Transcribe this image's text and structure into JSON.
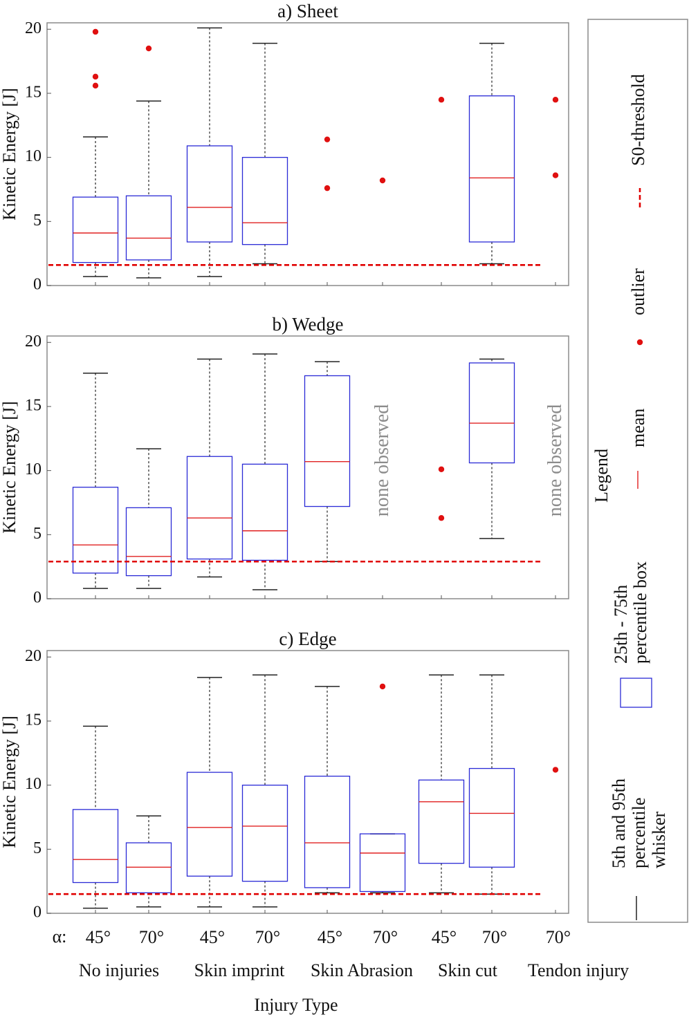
{
  "chart_data": {
    "type": "box",
    "xlabel": "Injury Type",
    "alpha_label": "α:",
    "angle_labels": [
      "45°",
      "70°",
      "45°",
      "70°",
      "45°",
      "70°",
      "45°",
      "70°",
      "70°"
    ],
    "categories": [
      "No injuries",
      "Skin imprint",
      "Skin Abrasion",
      "Skin cut",
      "Tendon injury"
    ],
    "ylim": [
      0,
      20
    ],
    "yticks": [
      "0",
      "5",
      "10",
      "15",
      "20"
    ],
    "panels": [
      {
        "title": "a) Sheet",
        "ylabel": "Kinetic Energy [J]",
        "threshold": 1.6,
        "none_observed": [],
        "boxes": [
          {
            "slot": 0,
            "low": 0.7,
            "q1": 1.8,
            "mean": 4.1,
            "q3": 6.9,
            "high": 11.6
          },
          {
            "slot": 1,
            "low": 0.6,
            "q1": 2.0,
            "mean": 3.7,
            "q3": 7.0,
            "high": 14.4
          },
          {
            "slot": 2,
            "low": 0.7,
            "q1": 3.4,
            "mean": 6.1,
            "q3": 10.9,
            "high": 20.1
          },
          {
            "slot": 3,
            "low": 1.7,
            "q1": 3.2,
            "mean": 4.9,
            "q3": 10.0,
            "high": 18.9
          },
          {
            "slot": 7,
            "low": 1.7,
            "q1": 3.4,
            "mean": 8.4,
            "q3": 14.8,
            "high": 18.9
          }
        ],
        "outliers": [
          {
            "slot": 0,
            "value": 19.8
          },
          {
            "slot": 0,
            "value": 16.3
          },
          {
            "slot": 0,
            "value": 15.6
          },
          {
            "slot": 1,
            "value": 18.5
          },
          {
            "slot": 4,
            "value": 11.4
          },
          {
            "slot": 4,
            "value": 7.6
          },
          {
            "slot": 5,
            "value": 8.2
          },
          {
            "slot": 6,
            "value": 14.5
          },
          {
            "slot": 8,
            "value": 14.5
          },
          {
            "slot": 8,
            "value": 8.6
          }
        ]
      },
      {
        "title": "b) Wedge",
        "ylabel": "Kinetic Energy [J]",
        "threshold": 2.9,
        "none_observed": [
          5,
          8
        ],
        "boxes": [
          {
            "slot": 0,
            "low": 0.8,
            "q1": 2.0,
            "mean": 4.2,
            "q3": 8.7,
            "high": 17.6
          },
          {
            "slot": 1,
            "low": 0.8,
            "q1": 1.8,
            "mean": 3.3,
            "q3": 7.1,
            "high": 11.7
          },
          {
            "slot": 2,
            "low": 1.7,
            "q1": 3.1,
            "mean": 6.3,
            "q3": 11.1,
            "high": 18.7
          },
          {
            "slot": 3,
            "low": 0.7,
            "q1": 3.0,
            "mean": 5.3,
            "q3": 10.5,
            "high": 19.1
          },
          {
            "slot": 4,
            "low": 2.9,
            "q1": 7.2,
            "mean": 10.7,
            "q3": 17.4,
            "high": 18.5
          },
          {
            "slot": 7,
            "low": 4.7,
            "q1": 10.6,
            "mean": 13.7,
            "q3": 18.4,
            "high": 18.7
          }
        ],
        "outliers": [
          {
            "slot": 6,
            "value": 10.1
          },
          {
            "slot": 6,
            "value": 6.3
          }
        ]
      },
      {
        "title": "c) Edge",
        "ylabel": "Kinetic Energy [J]",
        "threshold": 1.5,
        "none_observed": [],
        "boxes": [
          {
            "slot": 0,
            "low": 0.4,
            "q1": 2.4,
            "mean": 4.2,
            "q3": 8.1,
            "high": 14.6
          },
          {
            "slot": 1,
            "low": 0.5,
            "q1": 1.6,
            "mean": 3.6,
            "q3": 5.5,
            "high": 7.6
          },
          {
            "slot": 2,
            "low": 0.5,
            "q1": 2.9,
            "mean": 6.7,
            "q3": 11.0,
            "high": 18.4
          },
          {
            "slot": 3,
            "low": 0.5,
            "q1": 2.5,
            "mean": 6.8,
            "q3": 10.0,
            "high": 18.6
          },
          {
            "slot": 4,
            "low": 1.6,
            "q1": 2.0,
            "mean": 5.5,
            "q3": 10.7,
            "high": 17.7
          },
          {
            "slot": 5,
            "low": 1.6,
            "q1": 1.7,
            "mean": 4.7,
            "q3": 6.2,
            "high": 6.2
          },
          {
            "slot": 6,
            "low": 1.6,
            "q1": 3.9,
            "mean": 8.7,
            "q3": 10.4,
            "high": 18.6
          },
          {
            "slot": 7,
            "low": 1.5,
            "q1": 3.6,
            "mean": 7.8,
            "q3": 11.3,
            "high": 18.6
          }
        ],
        "outliers": [
          {
            "slot": 5,
            "value": 17.7
          },
          {
            "slot": 8,
            "value": 11.2
          }
        ]
      }
    ]
  },
  "none_observed_text": "none observed",
  "legend": {
    "title": "Legend",
    "items": [
      {
        "key": "threshold",
        "text": [
          "S0-threshold"
        ]
      },
      {
        "key": "outlier",
        "text": [
          "outlier"
        ]
      },
      {
        "key": "mean",
        "text": [
          "mean"
        ]
      },
      {
        "key": "box",
        "text": [
          "25th - 75th",
          "percentile box"
        ]
      },
      {
        "key": "whisker",
        "text": [
          "5th and 95th",
          "percentile",
          "whisker"
        ]
      }
    ]
  },
  "colors": {
    "box": "#2a2ad6",
    "mean": "#e02020",
    "outlier": "#e01010",
    "threshold": "#e00000",
    "none_observed": "#8c8c8c"
  }
}
